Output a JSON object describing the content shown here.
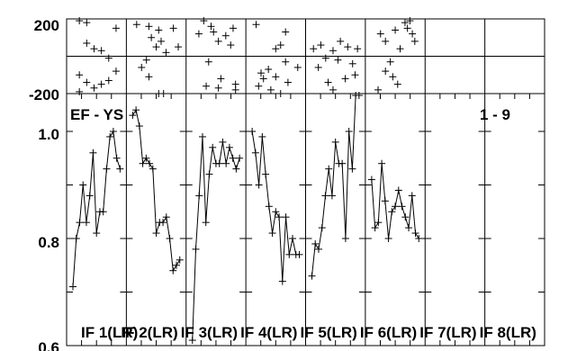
{
  "chart_data": {
    "type": "line",
    "panel_label": "EF - YS",
    "range_label": "1 - 9",
    "phase_panel": {
      "y_ticks": [
        "200",
        "-200"
      ],
      "ylim": [
        -200,
        200
      ],
      "groups": [
        [
          [
            0.15,
            190
          ],
          [
            0.3,
            180
          ],
          [
            0.3,
            70
          ],
          [
            0.45,
            40
          ],
          [
            0.6,
            30
          ],
          [
            0.75,
            -10
          ],
          [
            0.9,
            150
          ],
          [
            0.9,
            -80
          ],
          [
            0.15,
            -100
          ],
          [
            0.6,
            -150
          ],
          [
            0.75,
            -130
          ],
          [
            0.45,
            -170
          ],
          [
            0.3,
            -140
          ],
          [
            0.15,
            -190
          ]
        ],
        [
          [
            0.1,
            170
          ],
          [
            0.3,
            -20
          ],
          [
            0.4,
            100
          ],
          [
            0.5,
            50
          ],
          [
            0.55,
            140
          ],
          [
            0.6,
            80
          ],
          [
            0.7,
            20
          ],
          [
            0.85,
            150
          ],
          [
            0.35,
            160
          ],
          [
            0.2,
            -60
          ],
          [
            0.35,
            -110
          ],
          [
            0.55,
            -200
          ],
          [
            0.65,
            -200
          ],
          [
            0.95,
            50
          ]
        ],
        [
          [
            0.15,
            120
          ],
          [
            0.25,
            190
          ],
          [
            0.4,
            160
          ],
          [
            0.45,
            130
          ],
          [
            0.55,
            80
          ],
          [
            0.7,
            110
          ],
          [
            0.8,
            60
          ],
          [
            0.85,
            150
          ],
          [
            0.6,
            -120
          ],
          [
            0.35,
            -30
          ],
          [
            0.9,
            -150
          ],
          [
            0.3,
            -160
          ],
          [
            0.55,
            -170
          ],
          [
            0.9,
            -180
          ]
        ],
        [
          [
            0.1,
            170
          ],
          [
            0.7,
            130
          ],
          [
            0.6,
            60
          ],
          [
            0.5,
            40
          ],
          [
            0.7,
            -30
          ],
          [
            0.2,
            -90
          ],
          [
            0.25,
            -120
          ],
          [
            0.35,
            -70
          ],
          [
            0.5,
            -110
          ],
          [
            0.4,
            -180
          ],
          [
            0.75,
            -140
          ],
          [
            0.95,
            -60
          ],
          [
            0.15,
            -160
          ],
          [
            0.6,
            -200
          ]
        ],
        [
          [
            0.05,
            40
          ],
          [
            0.2,
            60
          ],
          [
            0.3,
            -10
          ],
          [
            0.45,
            30
          ],
          [
            0.55,
            -20
          ],
          [
            0.6,
            80
          ],
          [
            0.75,
            50
          ],
          [
            0.85,
            -40
          ],
          [
            0.95,
            40
          ],
          [
            0.15,
            -60
          ],
          [
            0.35,
            -140
          ],
          [
            0.45,
            -180
          ],
          [
            0.7,
            -120
          ],
          [
            0.9,
            -100
          ]
        ],
        [
          [
            0.2,
            120
          ],
          [
            0.3,
            80
          ],
          [
            0.4,
            -30
          ],
          [
            0.5,
            140
          ],
          [
            0.6,
            40
          ],
          [
            0.7,
            180
          ],
          [
            0.75,
            150
          ],
          [
            0.85,
            120
          ],
          [
            0.9,
            80
          ],
          [
            0.3,
            -80
          ],
          [
            0.55,
            -150
          ],
          [
            0.15,
            -180
          ],
          [
            0.45,
            -110
          ],
          [
            0.8,
            190
          ]
        ]
      ]
    },
    "y_ticks": [
      "1.0",
      "0.8",
      "0.6"
    ],
    "ylim": [
      0.6,
      1.0
    ],
    "series": [
      {
        "name": "IF 1(LR)",
        "values": [
          0.71,
          0.8,
          0.83,
          0.9,
          0.83,
          0.88,
          0.96,
          0.81,
          0.85,
          0.85,
          0.93,
          0.99,
          1.0,
          0.95,
          0.93
        ]
      },
      {
        "name": "IF 2(LR)",
        "values": [
          1.03,
          1.04,
          1.01,
          0.94,
          0.95,
          0.94,
          0.93,
          0.81,
          0.83,
          0.83,
          0.84,
          0.8,
          0.74,
          0.75,
          0.76
        ]
      },
      {
        "name": "IF 3(LR)",
        "values": [
          0.61,
          0.78,
          0.88,
          0.99,
          0.83,
          0.92,
          0.97,
          0.94,
          0.94,
          0.98,
          0.94,
          0.97,
          0.95,
          0.93,
          0.95
        ]
      },
      {
        "name": "IF 4(LR)",
        "values": [
          1.0,
          0.96,
          0.9,
          0.99,
          0.92,
          0.86,
          0.81,
          0.85,
          0.84,
          0.72,
          0.84,
          0.77,
          0.8,
          0.77,
          0.77
        ]
      },
      {
        "name": "IF 5(LR)",
        "values": [
          0.73,
          0.79,
          0.78,
          0.82,
          0.88,
          0.93,
          0.88,
          0.98,
          0.94,
          0.94,
          0.8,
          1.0,
          0.93,
          1.07,
          1.08
        ]
      },
      {
        "name": "IF 6(LR)",
        "values": [
          0.91,
          0.82,
          0.83,
          0.94,
          0.87,
          0.8,
          0.85,
          0.86,
          0.89,
          0.86,
          0.84,
          0.82,
          0.88,
          0.81,
          0.8
        ]
      },
      {
        "name": "IF 7(LR)",
        "values": []
      },
      {
        "name": "IF 8(LR)",
        "values": []
      }
    ]
  }
}
